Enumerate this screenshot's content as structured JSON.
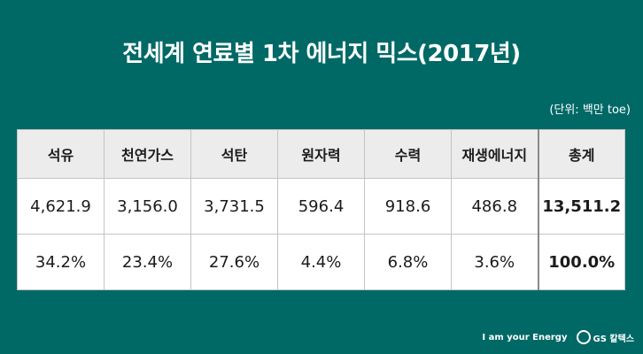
{
  "title": "전세계 연료별 1차 에너지 믹스(2017년)",
  "unit": "(단위: 백만 toe)",
  "table": {
    "headers": [
      "석유",
      "천연가스",
      "석탄",
      "원자력",
      "수력",
      "재생에너지",
      "총계"
    ],
    "rows": [
      [
        "4,621.9",
        "3,156.0",
        "3,731.5",
        "596.4",
        "918.6",
        "486.8",
        "13,511.2"
      ],
      [
        "34.2%",
        "23.4%",
        "27.6%",
        "4.4%",
        "6.8%",
        "3.6%",
        "100.0%"
      ]
    ]
  },
  "footer": {
    "slogan": "I am your Energy",
    "brand": "GS 칼텍스"
  }
}
